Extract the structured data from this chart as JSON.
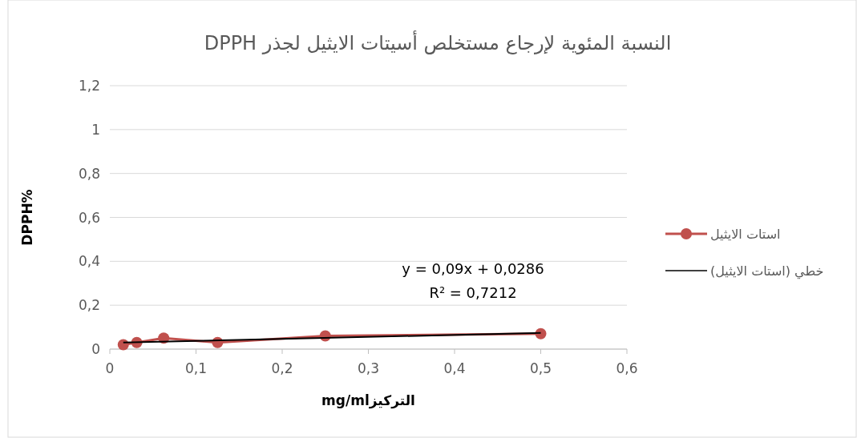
{
  "chart_data": {
    "type": "line",
    "title": "النسبة المئوية لإرجاع مستخلص أسيتات الايثيل لجذر DPPH",
    "xlabel": "التركيزmg/ml",
    "ylabel": "DPPH%",
    "x": [
      0.015625,
      0.03125,
      0.0625,
      0.125,
      0.25,
      0.5
    ],
    "series": [
      {
        "name": "استات الايثيل",
        "color": "#c0504d",
        "marker": "circle",
        "values": [
          0.02,
          0.03,
          0.05,
          0.03,
          0.06,
          0.07
        ]
      },
      {
        "name": "خطي (استات الايثيل)",
        "color": "#000000",
        "marker": "none",
        "x": [
          0.015625,
          0.5
        ],
        "values": [
          0.03,
          0.0736
        ]
      }
    ],
    "xlim": [
      0,
      0.6
    ],
    "ylim": [
      0,
      1.2
    ],
    "xticks": [
      0,
      {
        "value": 0.1,
        "label": "0,1"
      },
      {
        "value": 0.2,
        "label": "0,2"
      },
      {
        "value": 0.3,
        "label": "0,3"
      },
      {
        "value": 0.4,
        "label": "0,4"
      },
      {
        "value": 0.5,
        "label": "0,5"
      },
      {
        "value": 0.6,
        "label": "0,6"
      }
    ],
    "yticks": [
      0,
      {
        "value": 0.2,
        "label": "0,2"
      },
      {
        "value": 0.4,
        "label": "0,4"
      },
      {
        "value": 0.6,
        "label": "0,6"
      },
      {
        "value": 0.8,
        "label": "0,8"
      },
      1,
      {
        "value": 1.2,
        "label": "1,2"
      }
    ],
    "grid": "y",
    "legend": "right",
    "annotations": [
      "y = 0,09x + 0,0286",
      "R² = 0,7212"
    ]
  }
}
